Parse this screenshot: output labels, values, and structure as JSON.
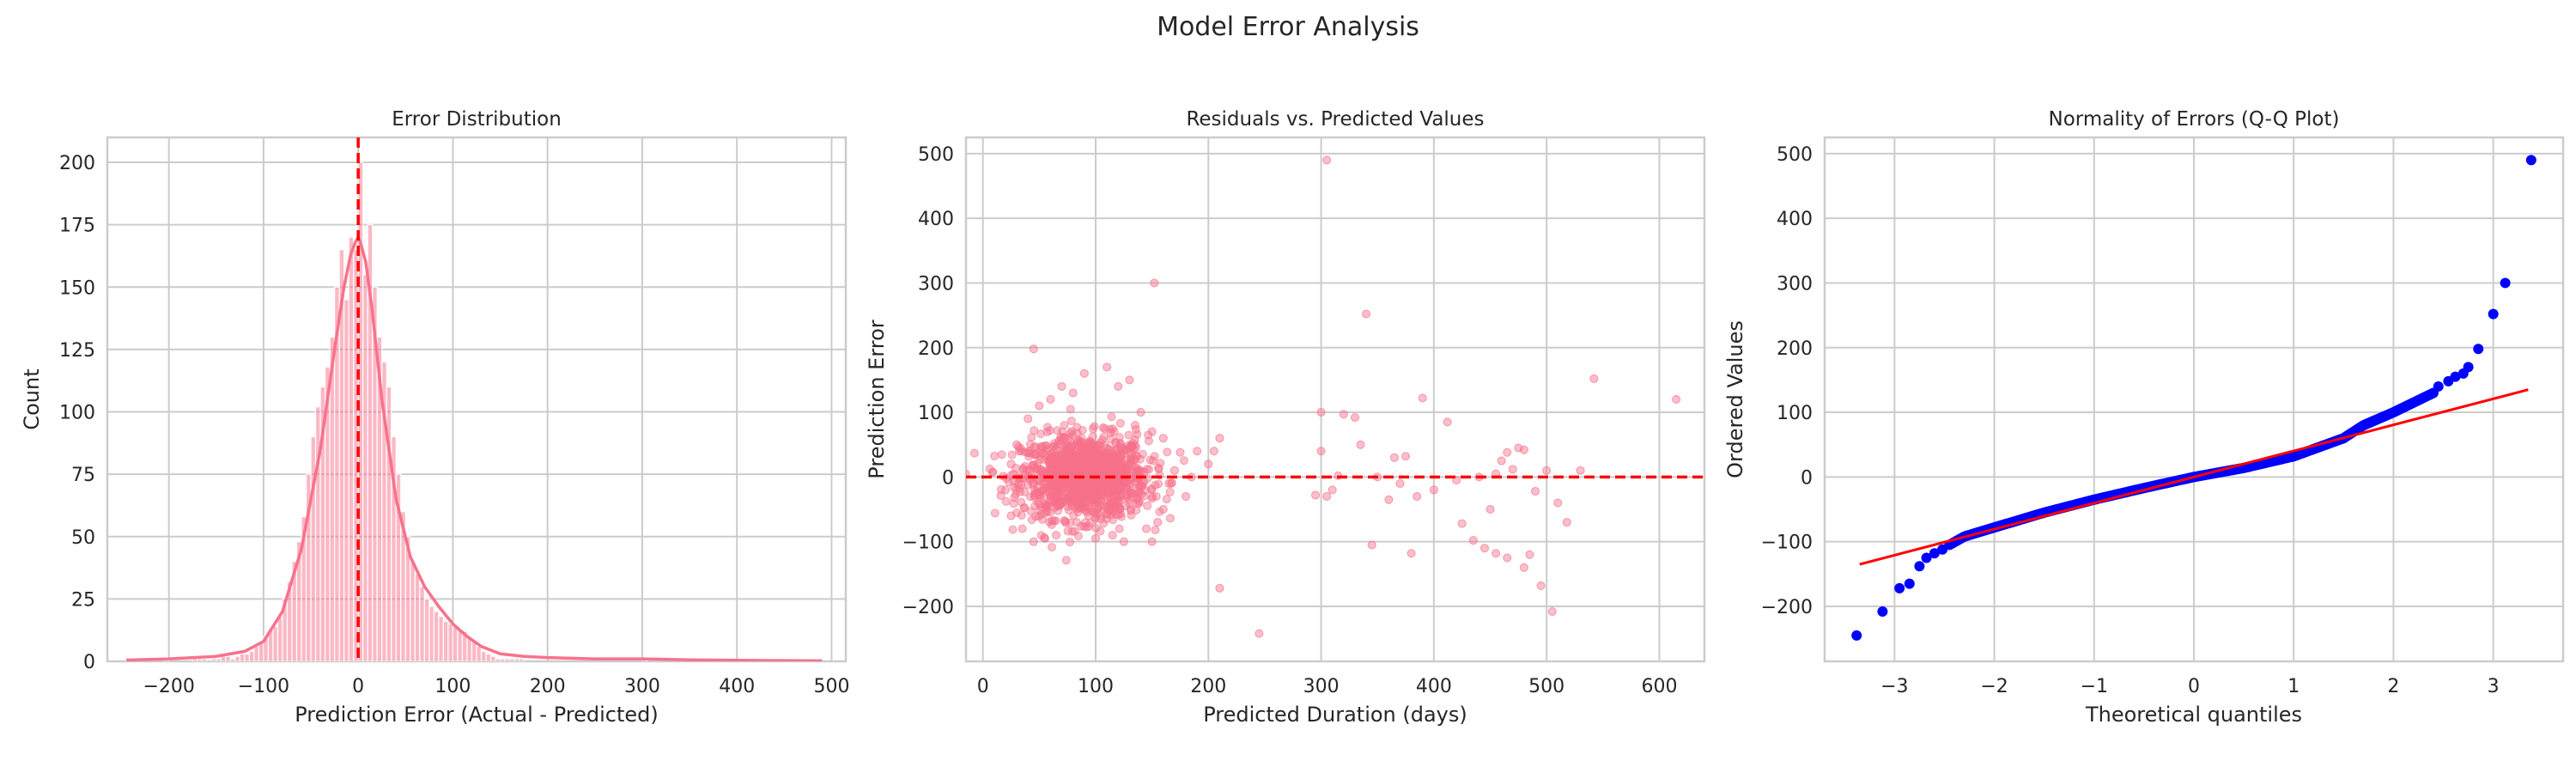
{
  "figure": {
    "title": "Model Error Analysis"
  },
  "colors": {
    "pink": "#f7728b",
    "red": "#ff0000",
    "blue": "#0000ff",
    "grid": "#cccccc",
    "text": "#262626"
  },
  "chart_data": [
    {
      "type": "bar",
      "subtype": "histogram-with-kde",
      "title": "Error Distribution",
      "xlabel": "Prediction Error (Actual - Predicted)",
      "ylabel": "Count",
      "xlim": [
        -265,
        515
      ],
      "ylim": [
        0,
        210
      ],
      "xticks": [
        -200,
        -100,
        0,
        100,
        200,
        300,
        400,
        500
      ],
      "yticks": [
        0,
        25,
        50,
        75,
        100,
        125,
        150,
        175,
        200
      ],
      "bin_width": 5,
      "bins_start": [
        -245,
        -240,
        -235,
        -230,
        -225,
        -220,
        -215,
        -210,
        -205,
        -200,
        -195,
        -190,
        -185,
        -180,
        -175,
        -170,
        -165,
        -160,
        -155,
        -150,
        -145,
        -140,
        -135,
        -130,
        -125,
        -120,
        -115,
        -110,
        -105,
        -100,
        -95,
        -90,
        -85,
        -80,
        -75,
        -70,
        -65,
        -60,
        -55,
        -50,
        -45,
        -40,
        -35,
        -30,
        -25,
        -20,
        -15,
        -10,
        -5,
        0,
        5,
        10,
        15,
        20,
        25,
        30,
        35,
        40,
        45,
        50,
        55,
        60,
        65,
        70,
        75,
        80,
        85,
        90,
        95,
        100,
        105,
        110,
        115,
        120,
        125,
        130,
        135,
        140,
        145,
        150,
        155,
        160,
        165,
        170,
        175,
        180,
        185,
        190,
        195,
        200,
        205,
        210,
        215,
        220,
        225,
        230,
        235,
        240,
        245,
        250,
        255,
        260,
        265,
        270,
        275,
        280,
        285,
        290,
        295,
        300,
        305,
        310,
        315,
        320,
        325,
        330,
        335,
        340,
        345,
        350,
        355,
        360,
        365,
        370,
        375,
        380,
        385,
        390,
        395,
        400,
        405,
        410,
        415,
        420,
        425,
        430,
        435,
        440,
        445,
        450,
        455,
        460,
        465,
        470,
        475,
        480,
        485
      ],
      "counts": [
        1,
        0,
        0,
        0,
        0,
        0,
        0,
        0,
        1,
        0,
        0,
        0,
        0,
        0,
        1,
        1,
        1,
        0,
        1,
        1,
        2,
        2,
        1,
        2,
        3,
        3,
        4,
        6,
        8,
        10,
        13,
        14,
        18,
        25,
        32,
        40,
        48,
        58,
        75,
        90,
        102,
        110,
        118,
        130,
        150,
        165,
        145,
        170,
        165,
        200,
        155,
        175,
        150,
        130,
        120,
        110,
        90,
        75,
        60,
        50,
        40,
        35,
        30,
        25,
        22,
        20,
        18,
        16,
        15,
        14,
        13,
        12,
        10,
        8,
        6,
        4,
        3,
        2,
        1,
        1,
        1,
        1,
        1,
        1,
        0,
        0,
        0,
        0,
        0,
        0,
        0,
        0,
        0,
        0,
        0,
        0,
        0,
        0,
        0,
        0,
        0,
        0,
        0,
        0,
        0,
        0,
        0,
        0,
        0,
        1,
        0,
        0,
        0,
        0,
        0,
        0,
        0,
        0,
        0,
        0,
        0,
        0,
        0,
        0,
        0,
        0,
        0,
        0,
        0,
        0,
        0,
        0,
        0,
        0,
        0,
        0,
        0,
        0,
        0,
        0,
        0,
        0,
        0,
        0,
        0,
        0,
        0,
        0,
        1
      ],
      "kde": {
        "x": [
          -245,
          -200,
          -150,
          -120,
          -100,
          -80,
          -60,
          -40,
          -25,
          -15,
          -8,
          -3,
          0,
          3,
          8,
          15,
          25,
          40,
          55,
          70,
          85,
          100,
          115,
          130,
          150,
          175,
          200,
          250,
          300,
          350,
          400,
          450,
          490
        ],
        "y": [
          0.5,
          1,
          2,
          4,
          8,
          20,
          45,
          85,
          125,
          150,
          163,
          168,
          170,
          167,
          160,
          140,
          105,
          65,
          42,
          30,
          22,
          15,
          10,
          6,
          3,
          2,
          1.5,
          1,
          1,
          0.6,
          0.4,
          0.3,
          0.2
        ]
      },
      "vline": {
        "x": 0,
        "style": "dashed"
      }
    },
    {
      "type": "scatter",
      "title": "Residuals vs. Predicted Values",
      "xlabel": "Predicted Duration (days)",
      "ylabel": "Prediction Error",
      "xlim": [
        -15,
        640
      ],
      "ylim": [
        -285,
        525
      ],
      "xticks": [
        0,
        100,
        200,
        300,
        400,
        500,
        600
      ],
      "yticks": [
        -200,
        -100,
        0,
        100,
        200,
        300,
        400,
        500
      ],
      "hline": {
        "y": 0,
        "style": "dashed"
      },
      "points": [
        [
          305,
          490
        ],
        [
          152,
          300
        ],
        [
          340,
          252
        ],
        [
          45,
          198
        ],
        [
          615,
          120
        ],
        [
          542,
          152
        ],
        [
          210,
          -172
        ],
        [
          245,
          -242
        ],
        [
          505,
          -208
        ],
        [
          495,
          -168
        ],
        [
          485,
          -120
        ],
        [
          480,
          -140
        ],
        [
          465,
          -125
        ],
        [
          455,
          -118
        ],
        [
          445,
          -110
        ],
        [
          435,
          -98
        ],
        [
          412,
          85
        ],
        [
          390,
          122
        ],
        [
          375,
          32
        ],
        [
          365,
          30
        ],
        [
          380,
          -118
        ],
        [
          350,
          0
        ],
        [
          360,
          -35
        ],
        [
          345,
          -105
        ],
        [
          330,
          92
        ],
        [
          335,
          50
        ],
        [
          320,
          97
        ],
        [
          300,
          40
        ],
        [
          305,
          -30
        ],
        [
          295,
          -28
        ],
        [
          310,
          -20
        ],
        [
          300,
          100
        ],
        [
          315,
          2
        ],
        [
          440,
          0
        ],
        [
          455,
          5
        ],
        [
          465,
          38
        ],
        [
          470,
          12
        ],
        [
          475,
          45
        ],
        [
          480,
          42
        ],
        [
          490,
          -22
        ],
        [
          500,
          10
        ],
        [
          510,
          -40
        ],
        [
          518,
          -70
        ],
        [
          530,
          10
        ],
        [
          450,
          -50
        ],
        [
          420,
          -5
        ],
        [
          400,
          -20
        ],
        [
          385,
          -30
        ],
        [
          370,
          -10
        ],
        [
          460,
          25
        ],
        [
          425,
          -72
        ],
        [
          210,
          60
        ],
        [
          200,
          20
        ],
        [
          190,
          40
        ],
        [
          185,
          0
        ],
        [
          205,
          40
        ],
        [
          175,
          38
        ],
        [
          165,
          -10
        ],
        [
          160,
          -50
        ],
        [
          150,
          -100
        ],
        [
          145,
          -80
        ],
        [
          155,
          -70
        ],
        [
          130,
          150
        ],
        [
          120,
          140
        ],
        [
          110,
          170
        ],
        [
          125,
          -100
        ],
        [
          115,
          -90
        ],
        [
          100,
          -95
        ],
        [
          70,
          140
        ],
        [
          90,
          160
        ],
        [
          80,
          130
        ],
        [
          60,
          120
        ],
        [
          50,
          110
        ],
        [
          40,
          90
        ],
        [
          30,
          50
        ],
        [
          25,
          20
        ],
        [
          20,
          -20
        ],
        [
          25,
          -60
        ],
        [
          35,
          -80
        ],
        [
          45,
          -100
        ],
        [
          55,
          -95
        ],
        [
          65,
          -90
        ],
        [
          140,
          100
        ],
        [
          135,
          80
        ],
        [
          170,
          10
        ],
        [
          180,
          -30
        ],
        [
          160,
          60
        ],
        [
          150,
          70
        ]
      ],
      "cluster": {
        "center_x": 90,
        "spread_x": 28,
        "center_y": 0,
        "spread_y": 32,
        "count": 1300
      }
    },
    {
      "type": "scatter",
      "subtype": "qq-plot",
      "title": "Normality of Errors (Q-Q Plot)",
      "xlabel": "Theoretical quantiles",
      "ylabel": "Ordered Values",
      "xlim": [
        -3.7,
        3.7
      ],
      "ylim": [
        -285,
        525
      ],
      "xticks": [
        -3,
        -2,
        -1,
        0,
        1,
        2,
        3
      ],
      "yticks": [
        -200,
        -100,
        0,
        100,
        200,
        300,
        400,
        500
      ],
      "fit_line": {
        "x": [
          -3.35,
          3.35
        ],
        "y": [
          -135,
          135
        ]
      },
      "outlier_points": [
        [
          -3.38,
          -245
        ],
        [
          -3.12,
          -208
        ],
        [
          -2.95,
          -172
        ],
        [
          -2.85,
          -165
        ],
        [
          -2.75,
          -138
        ],
        [
          -2.68,
          -125
        ],
        [
          -2.6,
          -118
        ],
        [
          -2.52,
          -112
        ],
        [
          2.45,
          140
        ],
        [
          2.55,
          148
        ],
        [
          2.62,
          155
        ],
        [
          2.7,
          160
        ],
        [
          2.75,
          170
        ],
        [
          2.85,
          198
        ],
        [
          3.0,
          252
        ],
        [
          3.12,
          300
        ],
        [
          3.38,
          490
        ]
      ],
      "curve": {
        "x": [
          -2.45,
          -2.3,
          -2.0,
          -1.5,
          -1.0,
          -0.5,
          0,
          0.5,
          1.0,
          1.5,
          1.7,
          2.0,
          2.2,
          2.4
        ],
        "y": [
          -105,
          -92,
          -78,
          -55,
          -35,
          -17,
          0,
          14,
          32,
          60,
          80,
          100,
          115,
          130
        ]
      }
    }
  ]
}
